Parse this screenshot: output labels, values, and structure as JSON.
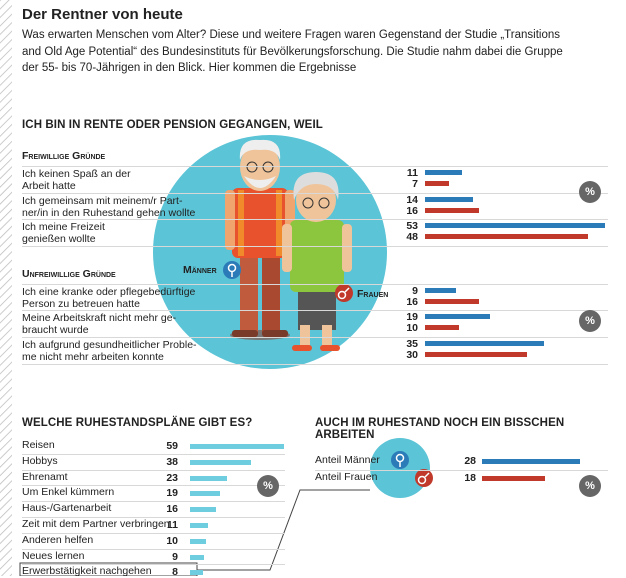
{
  "header": {
    "title": "Der Rentner von heute",
    "intro": "Was erwarten Menschen vom Alter? Diese und weitere Fragen waren Gegenstand der Studie „Transitions and Old Age Potential“ des Bundesinstituts für Bevölkerungsforschung. Die Studie nahm dabei die Gruppe der 55- bis 70-Jährigen in den Blick. Hier kommen die Ergebnisse"
  },
  "chart_data": [
    {
      "type": "grouped-bar",
      "orientation": "horizontal",
      "title": "ICH BIN IN RENTE ODER PENSION GEGANGEN, WEIL",
      "unit": "%",
      "groups": [
        {
          "name": "Freiwillige Gründe",
          "categories": [
            "Ich keinen Spaß an der\nArbeit hatte",
            "Ich gemeinsam mit meinem/r Part-\nner/in in den Ruhestand gehen wollte",
            "Ich meine Freizeit\ngenießen wollte"
          ]
        },
        {
          "name": "Unfreiwillige Gründe",
          "categories": [
            "Ich eine kranke oder pflegebedürftige\nPerson zu betreuen hatte",
            "Meine Arbeitskraft nicht mehr ge-\nbraucht wurde",
            "Ich aufgrund gesundheitlicher Proble-\nme nicht mehr arbeiten konnte"
          ]
        }
      ],
      "series": [
        {
          "name": "Männer",
          "color": "#2b7bb9",
          "values": [
            11,
            14,
            53,
            9,
            19,
            35
          ]
        },
        {
          "name": "Frauen",
          "color": "#c0392b",
          "values": [
            7,
            16,
            48,
            16,
            10,
            30
          ]
        }
      ]
    },
    {
      "type": "bar",
      "orientation": "horizontal",
      "title": "WELCHE RUHESTANDSPLÄNE GIBT ES?",
      "unit": "%",
      "color": "#6fcde0",
      "categories": [
        "Reisen",
        "Hobbys",
        "Ehrenamt",
        "Um Enkel kümmern",
        "Haus-/Gartenarbeit",
        "Zeit mit dem Partner verbringen",
        "Anderen helfen",
        "Neues lernen",
        "Erwerbstätigkeit nachgehen"
      ],
      "values": [
        59,
        38,
        23,
        19,
        16,
        11,
        10,
        9,
        8
      ]
    },
    {
      "type": "bar",
      "orientation": "horizontal",
      "title": "AUCH IM RUHESTAND NOCH EIN BISSCHEN ARBEITEN",
      "unit": "%",
      "categories": [
        "Anteil Männer",
        "Anteil Frauen"
      ],
      "values": [
        28,
        18
      ],
      "colors": [
        "#2b7bb9",
        "#c0392b"
      ]
    }
  ]
}
